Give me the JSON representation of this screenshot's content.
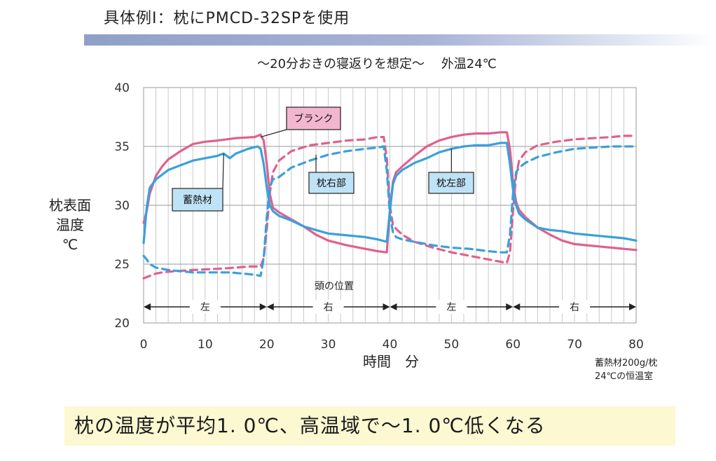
{
  "slide": {
    "title": "具体例Ⅰ：枕にPMCD-32SPを使用",
    "conclusion": "枕の温度が平均1. 0℃、高温域で～1. 0℃低くなる"
  },
  "chart_data": {
    "type": "line",
    "title": "～20分おきの寝返りを想定～　 外温24℃",
    "xlabel": "時間　分",
    "ylabel": [
      "枕表面",
      "温度",
      "℃"
    ],
    "xlim": [
      0,
      80
    ],
    "ylim": [
      20,
      40
    ],
    "x_ticks": [
      0,
      10,
      20,
      30,
      40,
      50,
      60,
      70,
      80
    ],
    "y_ticks": [
      20,
      25,
      30,
      35,
      40
    ],
    "grid": true,
    "colors": {
      "blank": "#e06090",
      "pcm": "#3aa0da"
    },
    "series": [
      {
        "name": "右 ブランク (pink dashed)",
        "style": "dashed",
        "color": "#e06090",
        "x": [
          0,
          1,
          2,
          3,
          5,
          8,
          12,
          15,
          17,
          19,
          19.5,
          20,
          20.5,
          21,
          22,
          24,
          27,
          30,
          33,
          36,
          38,
          39,
          39.5,
          40,
          40.5,
          41,
          42,
          44,
          47,
          50,
          53,
          56,
          58,
          59,
          59.5,
          60,
          60.5,
          61,
          62,
          64,
          67,
          70,
          73,
          76,
          78,
          80
        ],
        "y": [
          23.8,
          24,
          24.2,
          24.3,
          24.4,
          24.5,
          24.6,
          24.7,
          24.8,
          24.8,
          25.5,
          28,
          31,
          32.8,
          33.8,
          34.6,
          35.1,
          35.3,
          35.5,
          35.6,
          35.8,
          35.8,
          34,
          30,
          28.3,
          28,
          27.5,
          26.9,
          26.4,
          26,
          25.7,
          25.4,
          25.2,
          25.1,
          26,
          29.5,
          32.5,
          33.8,
          34.5,
          35.1,
          35.4,
          35.6,
          35.7,
          35.8,
          35.9,
          35.9
        ]
      },
      {
        "name": "左 ブランク (pink solid)",
        "style": "solid",
        "color": "#e06090",
        "x": [
          0,
          0.5,
          1,
          2,
          3,
          4,
          6,
          8,
          10,
          12,
          15,
          18,
          19,
          19.5,
          20,
          20.5,
          21,
          22,
          24,
          26,
          28,
          30,
          33,
          36,
          38,
          39.5,
          40,
          40.5,
          41,
          42,
          44,
          46,
          48,
          50,
          52,
          54,
          56,
          58,
          59,
          59.5,
          60,
          60.5,
          61,
          62,
          64,
          66,
          68,
          70,
          72,
          74,
          76,
          78,
          80
        ],
        "y": [
          28.5,
          29.5,
          31,
          32.5,
          33.3,
          33.9,
          34.6,
          35.2,
          35.4,
          35.5,
          35.7,
          35.8,
          36,
          35.5,
          33.5,
          31,
          29.8,
          29.4,
          28.8,
          28.2,
          27.5,
          27,
          26.6,
          26.3,
          26.1,
          26,
          29.5,
          32,
          32.8,
          33.3,
          34.2,
          35,
          35.5,
          35.8,
          36,
          36.1,
          36.1,
          36.2,
          36.2,
          34.8,
          32,
          30.3,
          29.6,
          29,
          28.1,
          27.5,
          27,
          26.7,
          26.6,
          26.5,
          26.4,
          26.3,
          26.2
        ]
      },
      {
        "name": "右 蓄熱材 (blue dashed)",
        "style": "dashed",
        "color": "#3aa0da",
        "x": [
          0,
          0.5,
          1,
          2,
          4,
          6,
          8,
          10,
          12,
          14,
          16,
          18,
          19,
          19.5,
          20,
          20.5,
          21,
          22,
          24,
          27,
          30,
          33,
          36,
          38,
          39,
          39.5,
          40,
          40.5,
          41,
          42,
          44,
          47,
          50,
          53,
          56,
          58,
          59,
          59.5,
          60,
          60.5,
          61,
          62,
          64,
          67,
          70,
          73,
          76,
          78,
          80
        ],
        "y": [
          25.7,
          25.4,
          25,
          24.7,
          24.5,
          24.4,
          24.3,
          24.3,
          24.3,
          24.3,
          24.2,
          24.1,
          24,
          25.5,
          29,
          31.5,
          32.2,
          32.4,
          33.2,
          33.8,
          34.3,
          34.6,
          34.8,
          34.9,
          35,
          33,
          29.2,
          27.7,
          27.3,
          27.1,
          26.9,
          26.6,
          26.4,
          26.3,
          26.1,
          26,
          26,
          27.5,
          31,
          32.8,
          33.2,
          33.6,
          34.1,
          34.5,
          34.8,
          34.9,
          35,
          35,
          35
        ]
      },
      {
        "name": "左 蓄熱材 (blue solid)",
        "style": "solid",
        "color": "#3aa0da",
        "x": [
          0,
          0.5,
          1,
          2,
          4,
          6,
          8,
          10,
          12,
          13,
          14,
          15,
          17,
          18.5,
          19,
          19.5,
          20,
          20.5,
          21,
          22,
          24,
          26,
          28,
          30,
          32,
          34,
          36,
          38,
          39.5,
          40,
          40.5,
          41,
          42,
          44,
          46,
          48,
          50,
          52,
          54,
          56,
          58,
          59,
          59.5,
          60,
          60.5,
          61,
          62,
          64,
          66,
          68,
          70,
          72,
          74,
          76,
          78,
          80
        ],
        "y": [
          26.8,
          29.8,
          31.5,
          32.2,
          33,
          33.4,
          33.8,
          34,
          34.2,
          34.4,
          34,
          34.4,
          34.8,
          35,
          34.8,
          33.5,
          31.5,
          30,
          29.5,
          29.1,
          28.7,
          28.2,
          27.9,
          27.6,
          27.5,
          27.4,
          27.3,
          27.1,
          26.9,
          29.5,
          31.8,
          32.5,
          33,
          33.6,
          34,
          34.5,
          34.8,
          35,
          35.1,
          35.1,
          35.3,
          35.3,
          33.5,
          31.3,
          30,
          29.3,
          28.8,
          28.1,
          27.9,
          27.8,
          27.6,
          27.5,
          27.4,
          27.3,
          27.2,
          27
        ]
      }
    ],
    "callouts": [
      {
        "label": "ブランク",
        "fill": "#f2b6cf",
        "target": [
          19,
          35.8
        ]
      },
      {
        "label": "蓄熱材",
        "fill": "#bfe3f6",
        "target": [
          13,
          34.4
        ]
      },
      {
        "label": "枕右部",
        "fill": "#bfe3f6",
        "target": [
          28,
          34.3
        ]
      },
      {
        "label": "枕左部",
        "fill": "#bfe3f6",
        "target": [
          50,
          34.8
        ]
      }
    ],
    "position_label": "頭の位置",
    "head_positions": [
      {
        "from": 0,
        "to": 20,
        "label": "左"
      },
      {
        "from": 20,
        "to": 40,
        "label": "右"
      },
      {
        "from": 40,
        "to": 60,
        "label": "左"
      },
      {
        "from": 60,
        "to": 80,
        "label": "右"
      }
    ],
    "footnote": [
      "蓄熱材200g/枕",
      "24℃の恒温室"
    ]
  }
}
